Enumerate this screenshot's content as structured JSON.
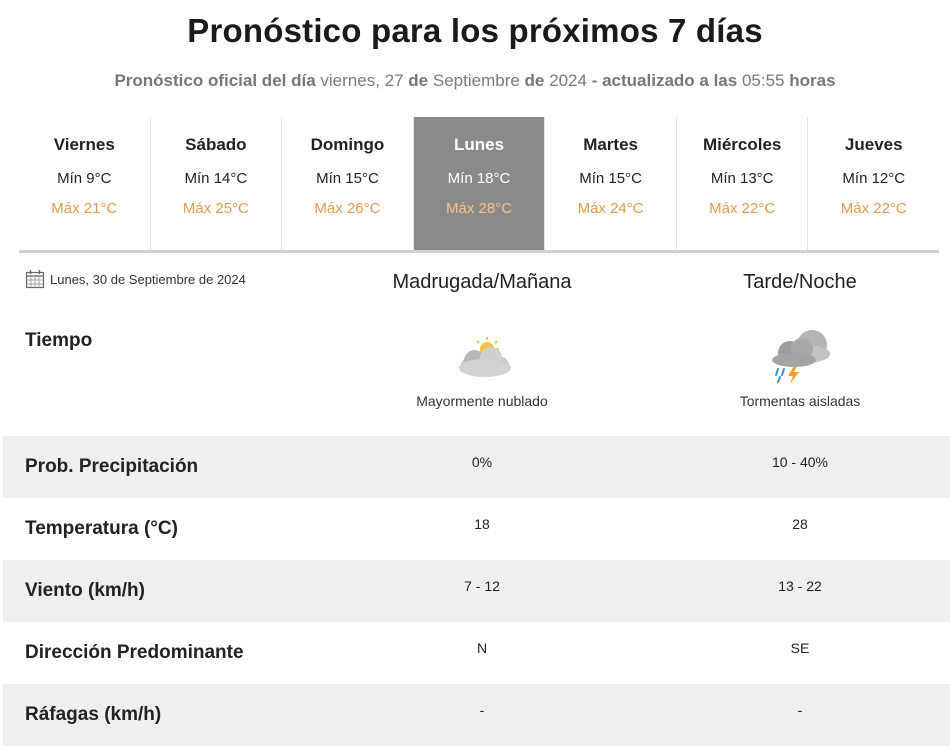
{
  "header": {
    "title": "Pronóstico para los próximos 7 días",
    "sub_part1": "Pronóstico oficial del día",
    "sub_date_day": "viernes, 27",
    "sub_de1": "de",
    "sub_month": "Septiembre",
    "sub_de2": "de",
    "sub_year": "2024",
    "sub_dash": "-",
    "sub_updated": "actualizado a las",
    "sub_time": "05:55",
    "sub_hours": "horas"
  },
  "days": [
    {
      "name": "Viernes",
      "min": "Mín 9°C",
      "max": "Máx 21°C"
    },
    {
      "name": "Sábado",
      "min": "Mín 14°C",
      "max": "Máx 25°C"
    },
    {
      "name": "Domingo",
      "min": "Mín 15°C",
      "max": "Máx 26°C"
    },
    {
      "name": "Lunes",
      "min": "Mín 18°C",
      "max": "Máx 28°C"
    },
    {
      "name": "Martes",
      "min": "Mín 15°C",
      "max": "Máx 24°C"
    },
    {
      "name": "Miércoles",
      "min": "Mín 13°C",
      "max": "Máx 22°C"
    },
    {
      "name": "Jueves",
      "min": "Mín 12°C",
      "max": "Máx 22°C"
    }
  ],
  "selected_day_index": 3,
  "detail": {
    "date": "Lunes, 30 de Septiembre de 2024",
    "col_am": "Madrugada/Mañana",
    "col_pm": "Tarde/Noche",
    "tiempo_label": "Tiempo",
    "am_icon": "partly-cloudy-icon",
    "pm_icon": "thunderstorm-icon",
    "am_desc": "Mayormente nublado",
    "pm_desc": "Tormentas aisladas"
  },
  "rows": [
    {
      "label": "Prob. Precipitación",
      "am": "0%",
      "pm": "10 - 40%"
    },
    {
      "label": "Temperatura (°C)",
      "am": "18",
      "pm": "28"
    },
    {
      "label": "Viento (km/h)",
      "am": "7 - 12",
      "pm": "13 - 22"
    },
    {
      "label": "Dirección Predominante",
      "am": "N",
      "pm": "SE"
    },
    {
      "label": "Ráfagas (km/h)",
      "am": "-",
      "pm": "-"
    }
  ],
  "colors": {
    "max_temp": "#e39a4f",
    "active_day_bg": "#8a8a8a",
    "row_shade": "#efefef"
  }
}
